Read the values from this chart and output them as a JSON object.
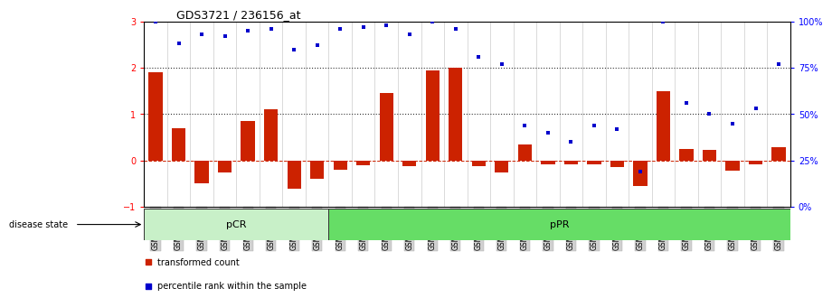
{
  "title": "GDS3721 / 236156_at",
  "samples": [
    "GSM559062",
    "GSM559063",
    "GSM559064",
    "GSM559065",
    "GSM559066",
    "GSM559067",
    "GSM559068",
    "GSM559069",
    "GSM559042",
    "GSM559043",
    "GSM559044",
    "GSM559045",
    "GSM559046",
    "GSM559047",
    "GSM559048",
    "GSM559049",
    "GSM559050",
    "GSM559051",
    "GSM559052",
    "GSM559053",
    "GSM559054",
    "GSM559055",
    "GSM559056",
    "GSM559057",
    "GSM559058",
    "GSM559059",
    "GSM559060",
    "GSM559061"
  ],
  "red_bars": [
    1.9,
    0.7,
    -0.5,
    -0.25,
    0.85,
    1.1,
    -0.6,
    -0.4,
    -0.2,
    -0.1,
    1.45,
    -0.12,
    1.95,
    2.0,
    -0.12,
    -0.25,
    0.35,
    -0.08,
    -0.08,
    -0.08,
    -0.15,
    -0.55,
    1.5,
    0.25,
    0.22,
    -0.22,
    -0.08,
    0.28
  ],
  "blue_dots_pct": [
    100,
    88,
    93,
    92,
    95,
    96,
    85,
    87,
    96,
    97,
    98,
    93,
    100,
    96,
    81,
    77,
    44,
    40,
    35,
    44,
    42,
    19,
    100,
    56,
    50,
    45,
    53,
    77
  ],
  "groups": [
    {
      "label": "pCR",
      "start": 0,
      "end": 8,
      "color": "#c8f0c8"
    },
    {
      "label": "pPR",
      "start": 8,
      "end": 28,
      "color": "#66dd66"
    }
  ],
  "ylim_left": [
    -1,
    3
  ],
  "ylim_right": [
    0,
    100
  ],
  "yticks_left": [
    -1,
    0,
    1,
    2,
    3
  ],
  "yticks_right": [
    0,
    25,
    50,
    75,
    100
  ],
  "bar_color": "#cc2200",
  "dot_color": "#0000cc",
  "hline_zero_color": "#cc2200",
  "hline_dotted_color": "#333333",
  "grid_color": "#cccccc",
  "tick_label_bg": "#d0d0d0",
  "pcr_color": "#c8f4c8",
  "ppr_color": "#55dd55"
}
